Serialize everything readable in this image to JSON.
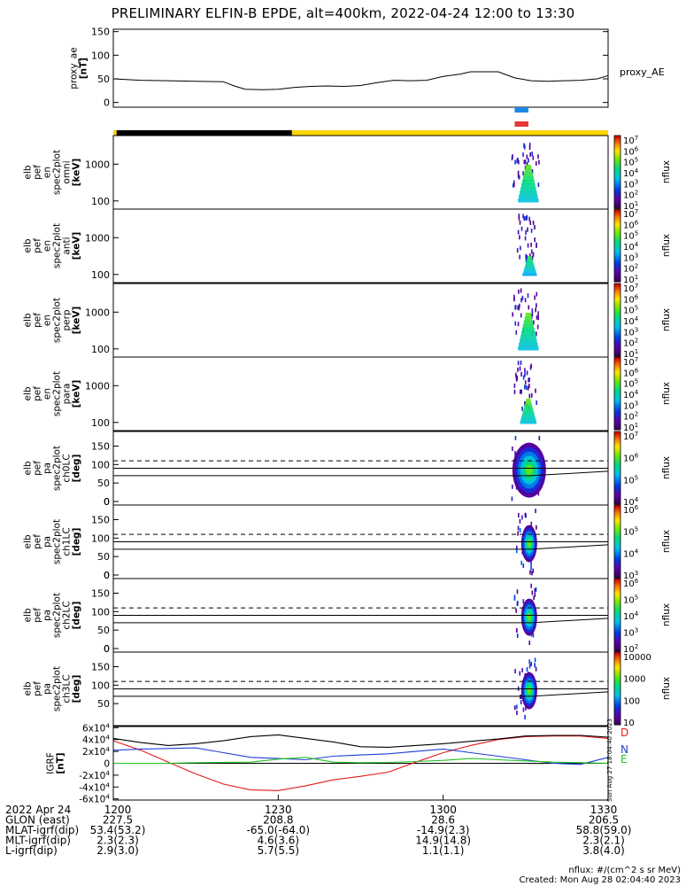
{
  "title": "PRELIMINARY ELFIN-B EPDE, alt=400km, 2022-04-24 12:00 to 13:30",
  "chart_data": [
    {
      "type": "line",
      "name": "proxy_ae",
      "ylabel": [
        "proxy_ae",
        "[nT]"
      ],
      "legend": "proxy_AE",
      "ylim": [
        -10,
        155
      ],
      "yticks": [
        0,
        50,
        100,
        150
      ],
      "x_minutes": [
        0,
        5,
        10,
        15,
        20,
        22,
        24,
        27,
        30,
        33,
        36,
        39,
        42,
        45,
        48,
        51,
        54,
        57,
        60,
        63,
        65,
        67,
        70,
        73,
        76,
        79,
        82,
        85,
        88,
        90
      ],
      "values": [
        50,
        47,
        46,
        45,
        44,
        35,
        28,
        27,
        28,
        32,
        34,
        35,
        34,
        36,
        42,
        47,
        46,
        47,
        55,
        60,
        65,
        65,
        65,
        52,
        46,
        45,
        46,
        47,
        50,
        57
      ]
    },
    {
      "type": "bar-indicator",
      "name": "science zone / phase bars",
      "blue_bar_minutes": [
        73.0,
        75.5
      ],
      "red_bar_minutes": [
        73.0,
        75.5
      ],
      "state_bar": [
        {
          "from": 0,
          "to": 0.6,
          "color": "#ffd500"
        },
        {
          "from": 0.6,
          "to": 32.5,
          "color": "#000000"
        },
        {
          "from": 32.5,
          "to": 90,
          "color": "#ffd500"
        }
      ]
    },
    {
      "type": "heatmap",
      "name": "elb pef en spec2plot omni",
      "ylabel": [
        "elb",
        "pef",
        "en",
        "spec2plot",
        "omni",
        "[keV]"
      ],
      "yscale": "log",
      "yticks": [
        100,
        1000
      ],
      "colorbar": {
        "label": "nflux",
        "ticks": [
          "10^7",
          "10^6",
          "10^5",
          "10^4",
          "10^3",
          "10^2",
          "10^1"
        ]
      },
      "activity_minutes": [
        72.5,
        77.5
      ]
    },
    {
      "type": "heatmap",
      "name": "elb pef en spec2plot anti",
      "ylabel": [
        "elb",
        "pef",
        "en",
        "spec2plot",
        "anti",
        "[keV]"
      ],
      "yscale": "log",
      "yticks": [
        100,
        1000
      ],
      "colorbar": {
        "label": "nflux",
        "ticks": [
          "10^7",
          "10^6",
          "10^5",
          "10^4",
          "10^3",
          "10^2",
          "10^1"
        ]
      },
      "activity_minutes": [
        73.5,
        77
      ]
    },
    {
      "type": "heatmap",
      "name": "elb pef en spec2plot perp",
      "ylabel": [
        "elb",
        "pef",
        "en",
        "spec2plot",
        "perp",
        "[keV]"
      ],
      "yscale": "log",
      "yticks": [
        100,
        1000
      ],
      "colorbar": {
        "label": "nflux",
        "ticks": [
          "10^7",
          "10^6",
          "10^5",
          "10^4",
          "10^3",
          "10^2",
          "10^1"
        ]
      },
      "activity_minutes": [
        72.5,
        77.5
      ]
    },
    {
      "type": "heatmap",
      "name": "elb pef en spec2plot para",
      "ylabel": [
        "elb",
        "pef",
        "en",
        "spec2plot",
        "para",
        "[keV]"
      ],
      "yscale": "log",
      "yticks": [
        100,
        1000
      ],
      "colorbar": {
        "label": "nflux",
        "ticks": [
          "10^7",
          "10^6",
          "10^5",
          "10^4",
          "10^3",
          "10^2",
          "10^1"
        ]
      },
      "activity_minutes": [
        73,
        77
      ]
    },
    {
      "type": "heatmap",
      "name": "elb pef pa spec2plot ch0LC",
      "ylabel": [
        "elb",
        "pef",
        "pa",
        "spec2plot",
        "ch0LC",
        "[deg]"
      ],
      "ylim": [
        0,
        180
      ],
      "yticks": [
        0,
        50,
        100,
        150
      ],
      "colorbar": {
        "label": "nflux",
        "ticks": [
          "10^7",
          "10^6",
          "10^5",
          "10^4"
        ]
      },
      "solid_lines_deg": [
        90,
        70
      ],
      "dashed_line_deg": 110,
      "activity_minutes": [
        72.5,
        77.5
      ]
    },
    {
      "type": "heatmap",
      "name": "elb pef pa spec2plot ch1LC",
      "ylabel": [
        "elb",
        "pef",
        "pa",
        "spec2plot",
        "ch1LC",
        "[deg]"
      ],
      "ylim": [
        0,
        180
      ],
      "yticks": [
        0,
        50,
        100,
        150
      ],
      "colorbar": {
        "label": "nflux",
        "ticks": [
          "10^6",
          "10^5",
          "10^4",
          "10^3"
        ]
      },
      "solid_lines_deg": [
        90,
        70
      ],
      "dashed_line_deg": 110,
      "activity_minutes": [
        73,
        77
      ]
    },
    {
      "type": "heatmap",
      "name": "elb pef pa spec2plot ch2LC",
      "ylabel": [
        "elb",
        "pef",
        "pa",
        "spec2plot",
        "ch2LC",
        "[deg]"
      ],
      "ylim": [
        0,
        180
      ],
      "yticks": [
        0,
        50,
        100,
        150
      ],
      "colorbar": {
        "label": "nflux",
        "ticks": [
          "10^6",
          "10^5",
          "10^4",
          "10^3",
          "10^2"
        ]
      },
      "solid_lines_deg": [
        90,
        70
      ],
      "dashed_line_deg": 110,
      "activity_minutes": [
        73,
        77
      ]
    },
    {
      "type": "heatmap",
      "name": "elb pef pa spec2plot ch3LC",
      "ylabel": [
        "elb",
        "pef",
        "pa",
        "spec2plot",
        "ch3LC",
        "[deg]"
      ],
      "ylim": [
        0,
        180
      ],
      "yticks": [
        50,
        100,
        150
      ],
      "colorbar": {
        "label": "nflux",
        "ticks": [
          "10000",
          "1000",
          "100",
          "10"
        ]
      },
      "solid_lines_deg": [
        90,
        70
      ],
      "dashed_line_deg": 110,
      "activity_minutes": [
        73,
        77
      ]
    },
    {
      "type": "line",
      "name": "B GEI",
      "ylabel": [
        "IGRF",
        "[nT]"
      ],
      "ylim": [
        -62000,
        62000
      ],
      "yticks": [
        "6x10^4",
        "4x10^4",
        "2x10^4",
        "0",
        "-2x10^4",
        "-4x10^4",
        "-6x10^4"
      ],
      "x_minutes": [
        0,
        5,
        10,
        15,
        20,
        25,
        30,
        35,
        40,
        45,
        50,
        55,
        60,
        65,
        70,
        75,
        80,
        85,
        90
      ],
      "series": [
        {
          "name": "D",
          "color": "#e41a1c",
          "values": [
            38000,
            22000,
            2000,
            -18000,
            -35000,
            -45000,
            -46000,
            -38000,
            -28000,
            -22000,
            -15000,
            2000,
            18000,
            30000,
            40000,
            45000,
            46000,
            46000,
            42000
          ]
        },
        {
          "name": "N",
          "color": "#1f3fd8",
          "values": [
            22000,
            24000,
            25000,
            26000,
            18000,
            10000,
            8000,
            6000,
            12000,
            14000,
            16000,
            20000,
            24000,
            18000,
            12000,
            6000,
            0,
            -2000,
            10000
          ]
        },
        {
          "name": "E",
          "color": "#22c422",
          "values": [
            0,
            0,
            0,
            1000,
            1500,
            2000,
            7000,
            10000,
            2000,
            1000,
            1500,
            3000,
            5000,
            8000,
            6000,
            4000,
            2000,
            1000,
            0
          ]
        },
        {
          "name": "total",
          "color": "#000000",
          "values": [
            42000,
            35000,
            30000,
            33000,
            38000,
            45000,
            48000,
            42000,
            36000,
            28000,
            27000,
            30000,
            33000,
            37000,
            41000,
            46000,
            47000,
            47000,
            44000
          ]
        }
      ]
    }
  ],
  "x_axis": {
    "tick_labels": [
      "1200",
      "1230",
      "1300",
      "1330"
    ],
    "rows": [
      {
        "label": "2022 Apr 24",
        "values": [
          "1200",
          "1230",
          "1300",
          "1330"
        ]
      },
      {
        "label": "GLON (east)",
        "values": [
          "227.5",
          "208.8",
          "28.6",
          "206.5"
        ]
      },
      {
        "label": "MLAT-igrf(dip)",
        "values": [
          "53.4(53.2)",
          "-65.0(-64.0)",
          "-14.9(2.3)",
          "58.8(59.0)"
        ]
      },
      {
        "label": "MLT-igrf(dip)",
        "values": [
          "2.3(2.3)",
          "4.6(3.6)",
          "14.9(14.8)",
          "2.3(2.1)"
        ]
      },
      {
        "label": "L-igrf(dip)",
        "values": [
          "2.9(3.0)",
          "5.7(5.5)",
          "1.1(1.1)",
          "3.8(4.0)"
        ]
      }
    ]
  },
  "footer": {
    "units": "nflux: #/(cm^2 s sr MeV)",
    "created": "Created: Mon Aug 28 02:04:40 2023"
  },
  "stamp": "Sun Aug 27 18:04:40 2023"
}
